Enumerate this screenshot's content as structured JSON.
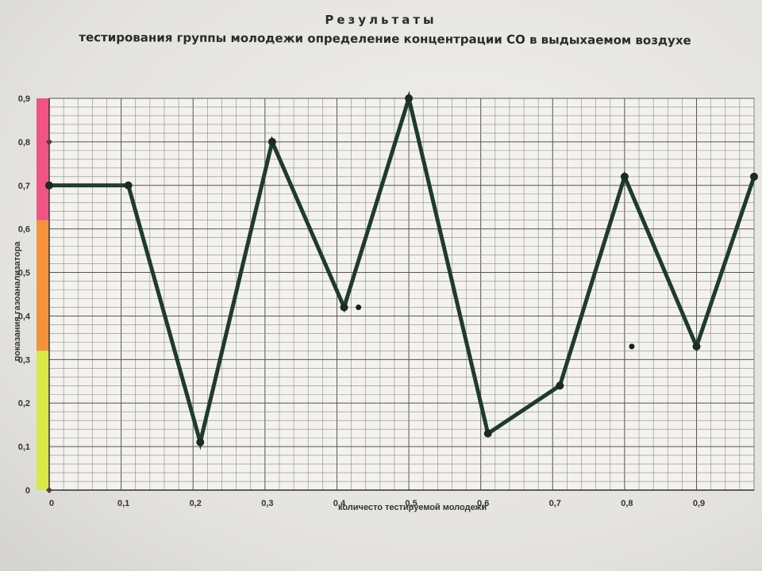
{
  "header": {
    "title": "Результаты",
    "subtitle": "тестирования группы молодежи определение концентрации СО в выдыхаемом воздухе"
  },
  "chart_data": {
    "type": "line",
    "title": "Результаты",
    "subtitle": "тестирования группы молодежи определение концентрации СО в выдыхаемом воздухе",
    "xlabel": "количесто тестируемой молодежи",
    "ylabel": "показания газоанализатора",
    "xlim": [
      0,
      0.98
    ],
    "ylim": [
      0,
      0.9
    ],
    "x_ticks": [
      "0",
      "0,1",
      "0,2",
      "0,3",
      "0,4",
      "0,5",
      "0,6",
      "0,7",
      "0,8",
      "0,9"
    ],
    "y_ticks": [
      "0",
      "0,1",
      "0,2",
      "0,3",
      "0,4",
      "0,5",
      "0,6",
      "0,7",
      "0,8",
      "0,9"
    ],
    "grid": true,
    "series": [
      {
        "x": [
          0,
          0.11,
          0.21,
          0.31,
          0.41,
          0.5,
          0.61,
          0.71,
          0.8,
          0.9,
          0.98
        ],
        "y": [
          0.7,
          0.7,
          0.11,
          0.8,
          0.42,
          0.9,
          0.13,
          0.24,
          0.72,
          0.33,
          0.72
        ],
        "color": "#1f3b2c"
      }
    ],
    "stray_points": [
      {
        "x": 0.43,
        "y": 0.42
      },
      {
        "x": 0.81,
        "y": 0.33
      }
    ],
    "color_scale": [
      {
        "from": 0,
        "to": 0.32,
        "color": "#d8ea3a"
      },
      {
        "from": 0.32,
        "to": 0.62,
        "color": "#f58a2a"
      },
      {
        "from": 0.62,
        "to": 0.9,
        "color": "#f0457a"
      }
    ]
  }
}
